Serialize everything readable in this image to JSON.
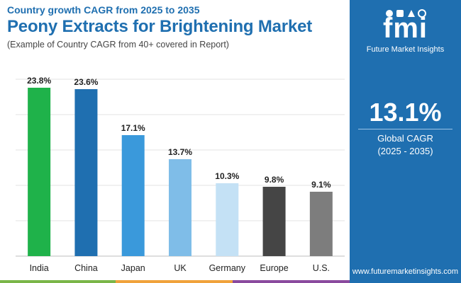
{
  "header": {
    "subtitle": "Country growth CAGR from 2025 to 2035",
    "title": "Peony Extracts for Brightening Market",
    "note": "(Example of Country CAGR from 40+ covered in Report)"
  },
  "chart_data": {
    "type": "bar",
    "categories": [
      "India",
      "China",
      "Japan",
      "UK",
      "Germany",
      "Europe",
      "U.S."
    ],
    "values": [
      23.8,
      23.6,
      17.1,
      13.7,
      10.3,
      9.8,
      9.1
    ],
    "data_labels": [
      "23.8%",
      "23.6%",
      "17.1%",
      "13.7%",
      "10.3%",
      "9.8%",
      "9.1%"
    ],
    "bar_colors": [
      "#1fb24a",
      "#1f6fb0",
      "#3a99db",
      "#7fbde8",
      "#c4e1f5",
      "#454545",
      "#7d7d7d"
    ],
    "ylim": [
      0,
      25
    ],
    "title": "",
    "xlabel": "",
    "ylabel": "",
    "grid": true
  },
  "side": {
    "logo_text": "fmi",
    "brand_name": "Future Market Insights",
    "kpi_value": "13.1%",
    "kpi_label": "Global CAGR",
    "kpi_period": "(2025 - 2035)",
    "website": "www.futuremarketinsights.com"
  },
  "colors": {
    "brand_blue": "#1f6fb0",
    "footer_green": "#7ab648",
    "footer_orange": "#f0a23b",
    "footer_purple": "#8a4a9e"
  }
}
